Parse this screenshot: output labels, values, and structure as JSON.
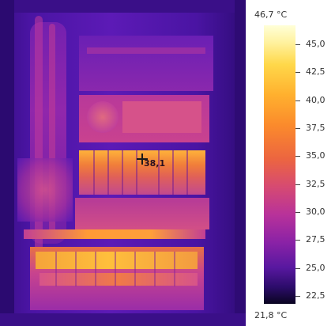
{
  "thermal": {
    "spot_reading": "38,1"
  },
  "scale": {
    "max_label": "46,7 °C",
    "min_label": "21,8 °C",
    "max_value": 46.7,
    "min_value": 21.8,
    "ticks": [
      "45,0",
      "42,5",
      "40,0",
      "37,5",
      "35,0",
      "32,5",
      "30,0",
      "27,5",
      "25,0",
      "22,5"
    ],
    "tick_values": [
      45.0,
      42.5,
      40.0,
      37.5,
      35.0,
      32.5,
      30.0,
      27.5,
      25.0,
      22.5
    ],
    "palette": [
      "#ffffd8",
      "#ffd84a",
      "#fb8a2c",
      "#d64a72",
      "#8a22a6",
      "#2c0c6a",
      "#0a0420"
    ]
  }
}
